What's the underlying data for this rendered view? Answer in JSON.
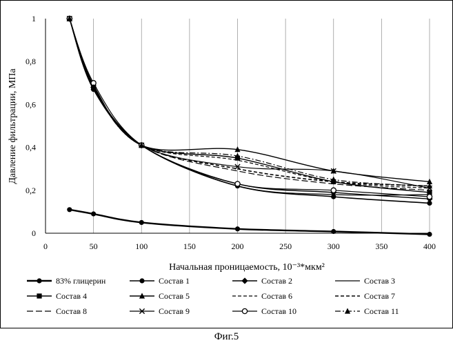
{
  "chart_data": {
    "type": "line",
    "title": "",
    "xlabel": "Начальная проницаемость, 10⁻³*мкм²",
    "ylabel": "Давление фильтрации, МПа",
    "xlim": [
      0,
      400
    ],
    "ylim": [
      0,
      1
    ],
    "x_ticks": [
      "0",
      "50",
      "100",
      "150",
      "200",
      "250",
      "300",
      "350",
      "400"
    ],
    "y_ticks": [
      "0",
      "0,2",
      "0,4",
      "0,6",
      "0,8",
      "1"
    ],
    "grid": "vertical",
    "legend_position": "bottom",
    "series": [
      {
        "name": "83% глицерин",
        "line": "solid",
        "marker": "circle",
        "width": 2.4,
        "points": [
          [
            25,
            0.11
          ],
          [
            50,
            0.09
          ],
          [
            100,
            0.05
          ],
          [
            200,
            0.02
          ],
          [
            300,
            0.008
          ],
          [
            400,
            -0.005
          ]
        ]
      },
      {
        "name": "Состав 1",
        "line": "solid",
        "marker": "circle",
        "width": 1.6,
        "points": [
          [
            25,
            1.0
          ],
          [
            50,
            0.67
          ],
          [
            100,
            0.41
          ],
          [
            200,
            0.22
          ],
          [
            300,
            0.17
          ],
          [
            400,
            0.14
          ]
        ]
      },
      {
        "name": "Состав 2",
        "line": "solid",
        "marker": "diamond",
        "width": 1.4,
        "points": [
          [
            25,
            1.0
          ],
          [
            50,
            0.68
          ],
          [
            100,
            0.41
          ],
          [
            200,
            0.23
          ],
          [
            300,
            0.19
          ],
          [
            400,
            0.16
          ]
        ]
      },
      {
        "name": "Состав 3",
        "line": "solid",
        "marker": "none",
        "width": 1.2,
        "points": [
          [
            25,
            1.0
          ],
          [
            50,
            0.68
          ],
          [
            100,
            0.41
          ],
          [
            200,
            0.22
          ],
          [
            300,
            0.18
          ],
          [
            400,
            0.18
          ]
        ]
      },
      {
        "name": "Состав 4",
        "line": "solid",
        "marker": "square",
        "width": 1.4,
        "points": [
          [
            25,
            1.0
          ],
          [
            50,
            0.68
          ],
          [
            100,
            0.41
          ],
          [
            200,
            0.35
          ],
          [
            300,
            0.24
          ],
          [
            400,
            0.19
          ]
        ]
      },
      {
        "name": "Состав 5",
        "line": "solid",
        "marker": "triangle",
        "width": 1.4,
        "points": [
          [
            25,
            1.0
          ],
          [
            50,
            0.69
          ],
          [
            100,
            0.41
          ],
          [
            200,
            0.39
          ],
          [
            300,
            0.29
          ],
          [
            400,
            0.24
          ]
        ]
      },
      {
        "name": "Состав 6",
        "line": "dashed",
        "marker": "none",
        "width": 1.2,
        "points": [
          [
            25,
            1.0
          ],
          [
            50,
            0.68
          ],
          [
            100,
            0.41
          ],
          [
            200,
            0.34
          ],
          [
            300,
            0.24
          ],
          [
            400,
            0.21
          ]
        ]
      },
      {
        "name": "Состав 7",
        "line": "dashed",
        "marker": "none",
        "width": 1.6,
        "points": [
          [
            25,
            1.0
          ],
          [
            50,
            0.68
          ],
          [
            100,
            0.41
          ],
          [
            200,
            0.3
          ],
          [
            300,
            0.24
          ],
          [
            400,
            0.22
          ]
        ]
      },
      {
        "name": "Состав 8",
        "line": "longdash",
        "marker": "none",
        "width": 1.2,
        "points": [
          [
            25,
            1.0
          ],
          [
            50,
            0.68
          ],
          [
            100,
            0.41
          ],
          [
            200,
            0.29
          ],
          [
            300,
            0.23
          ],
          [
            400,
            0.2
          ]
        ]
      },
      {
        "name": "Состав 9",
        "line": "solid",
        "marker": "x",
        "width": 1.2,
        "points": [
          [
            25,
            1.0
          ],
          [
            50,
            0.68
          ],
          [
            100,
            0.41
          ],
          [
            200,
            0.31
          ],
          [
            300,
            0.29
          ],
          [
            400,
            0.21
          ]
        ]
      },
      {
        "name": "Состав 10",
        "line": "solid",
        "marker": "open-circle",
        "width": 1.2,
        "points": [
          [
            25,
            1.0
          ],
          [
            50,
            0.7
          ],
          [
            100,
            0.41
          ],
          [
            200,
            0.23
          ],
          [
            300,
            0.2
          ],
          [
            400,
            0.17
          ]
        ]
      },
      {
        "name": "Состав 11",
        "line": "dashdot",
        "marker": "triangle",
        "width": 1.2,
        "points": [
          [
            25,
            1.0
          ],
          [
            50,
            0.68
          ],
          [
            100,
            0.41
          ],
          [
            200,
            0.36
          ],
          [
            300,
            0.25
          ],
          [
            400,
            0.22
          ]
        ]
      }
    ]
  },
  "caption": "Фиг.5"
}
